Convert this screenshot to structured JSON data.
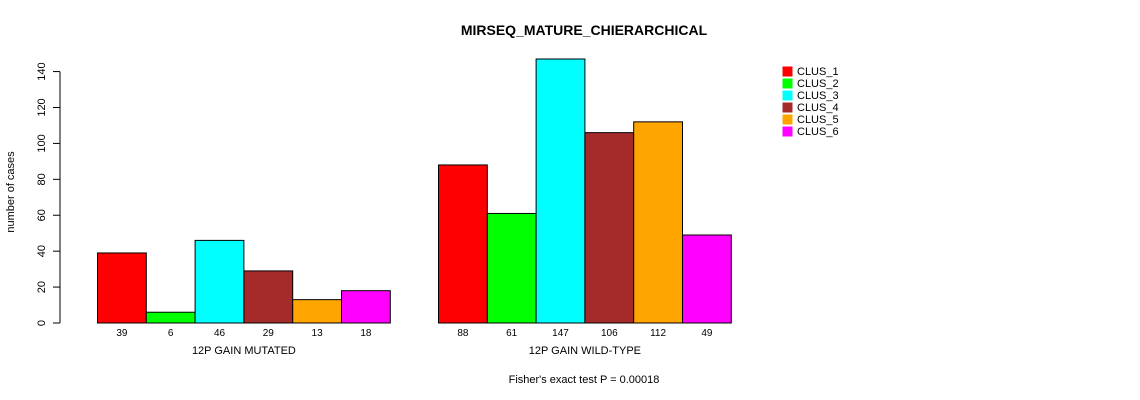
{
  "chart_data": {
    "type": "bar",
    "title": "MIRSEQ_MATURE_CHIERARCHICAL",
    "xlabel": "",
    "ylabel": "number of cases",
    "ylim": [
      0,
      147
    ],
    "yticks": [
      0,
      20,
      40,
      60,
      80,
      100,
      120,
      140
    ],
    "groups": [
      {
        "name": "12P GAIN MUTATED",
        "values": [
          39,
          6,
          46,
          29,
          13,
          18
        ]
      },
      {
        "name": "12P GAIN WILD-TYPE",
        "values": [
          88,
          61,
          147,
          106,
          112,
          49
        ]
      }
    ],
    "series": [
      {
        "name": "CLUS_1",
        "color": "#ff0000"
      },
      {
        "name": "CLUS_2",
        "color": "#00ff00"
      },
      {
        "name": "CLUS_3",
        "color": "#00ffff"
      },
      {
        "name": "CLUS_4",
        "color": "#a52a2a"
      },
      {
        "name": "CLUS_5",
        "color": "#ffa500"
      },
      {
        "name": "CLUS_6",
        "color": "#ff00ff"
      }
    ],
    "legend_position": "top-right",
    "footer": "Fisher's exact test P = 0.00018"
  }
}
